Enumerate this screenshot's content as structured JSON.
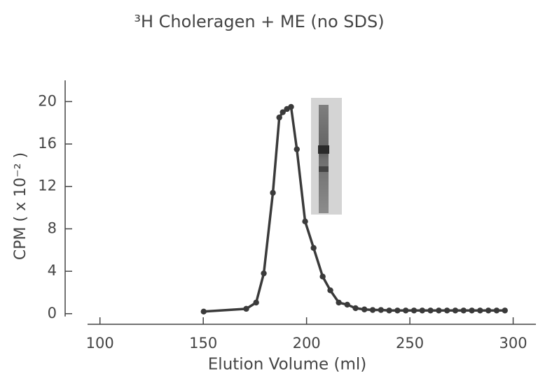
{
  "chart_data": {
    "type": "line",
    "title": "³H Choleragen + ME (no SDS)",
    "xlabel": "Elution Volume (ml)",
    "ylabel": "CPM ( x 10⁻² )",
    "xlim": [
      94,
      311
    ],
    "ylim": [
      -1,
      22
    ],
    "xticks": [
      100,
      150,
      200,
      250,
      300
    ],
    "yticks": [
      0,
      4,
      8,
      12,
      16,
      20
    ],
    "grid": false,
    "series": [
      {
        "color": "#3a3a3a",
        "x": [
          150.2,
          170.8,
          175.6,
          179.3,
          183.7,
          186.8,
          188.5,
          190.5,
          192.5,
          195.3,
          199.3,
          203.4,
          207.8,
          211.5,
          215.6,
          219.7,
          223.7,
          228,
          232,
          236,
          240,
          244,
          248,
          252,
          256,
          260,
          264,
          268,
          272,
          276,
          280,
          284,
          288,
          292,
          296
        ],
        "values": [
          0.2,
          0.46,
          1.05,
          3.8,
          11.4,
          18.5,
          19.0,
          19.3,
          19.5,
          15.5,
          8.7,
          6.2,
          3.5,
          2.2,
          1.05,
          0.85,
          0.52,
          0.4,
          0.35,
          0.35,
          0.3,
          0.3,
          0.3,
          0.3,
          0.3,
          0.3,
          0.3,
          0.3,
          0.3,
          0.3,
          0.3,
          0.3,
          0.3,
          0.3,
          0.3
        ]
      }
    ]
  }
}
